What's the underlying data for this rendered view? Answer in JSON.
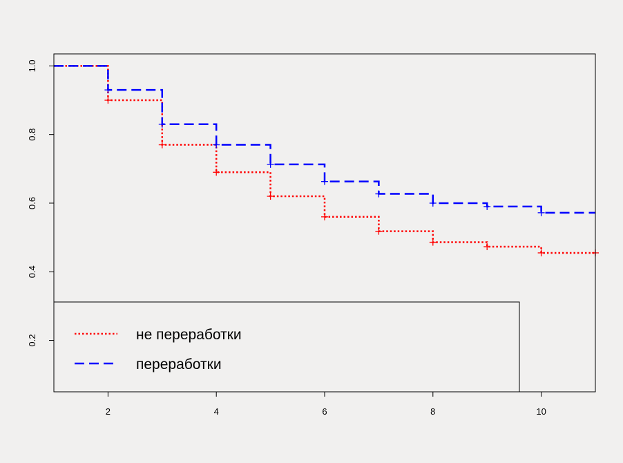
{
  "chart_data": {
    "type": "line",
    "step": "post",
    "title": "",
    "xlabel": "",
    "ylabel": "",
    "xlim": [
      1,
      11
    ],
    "ylim": [
      0.05,
      1.035
    ],
    "x_ticks": [
      2,
      4,
      6,
      8,
      10
    ],
    "x_tick_labels": [
      "2",
      "4",
      "6",
      "8",
      "10"
    ],
    "y_ticks": [
      0.2,
      0.4,
      0.6,
      0.8,
      1.0
    ],
    "y_tick_labels": [
      "0.2",
      "0.4",
      "0.6",
      "0.8",
      "1.0"
    ],
    "grid": false,
    "legend_position": "bottom-left",
    "series": [
      {
        "name": "не переработки",
        "color": "#ff0000",
        "line_style": "dotted",
        "x": [
          1,
          2,
          3,
          4,
          5,
          6,
          7,
          8,
          9,
          10,
          11
        ],
        "y": [
          1.0,
          0.9,
          0.77,
          0.69,
          0.62,
          0.56,
          0.518,
          0.486,
          0.473,
          0.455,
          0.455
        ],
        "censor_x": [
          2,
          3,
          4,
          5,
          6,
          7,
          8,
          9,
          10,
          11
        ],
        "censor_y": [
          0.9,
          0.77,
          0.69,
          0.62,
          0.56,
          0.518,
          0.486,
          0.473,
          0.455,
          0.455
        ]
      },
      {
        "name": "переработки",
        "color": "#0000ff",
        "line_style": "dashed",
        "x": [
          1,
          2,
          3,
          4,
          5,
          6,
          7,
          8,
          9,
          10,
          11
        ],
        "y": [
          1.0,
          0.93,
          0.83,
          0.77,
          0.713,
          0.663,
          0.627,
          0.6,
          0.59,
          0.572,
          0.572
        ],
        "censor_x": [
          2,
          3,
          4,
          5,
          6,
          7,
          8,
          9,
          10
        ],
        "censor_y": [
          0.93,
          0.83,
          0.77,
          0.713,
          0.663,
          0.627,
          0.6,
          0.59,
          0.572
        ]
      }
    ]
  }
}
